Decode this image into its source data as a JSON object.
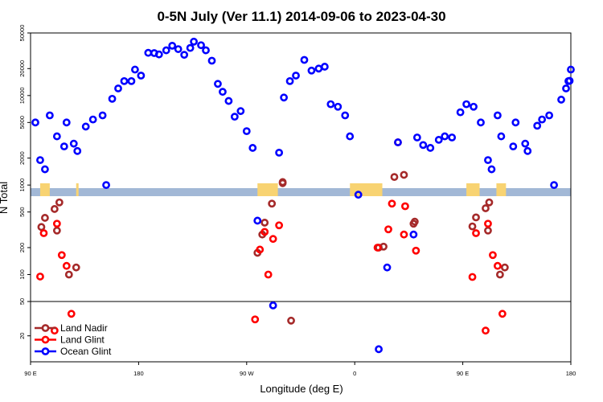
{
  "chart_data": {
    "type": "scatter",
    "title": "0-5N July (Ver 11.1)   2014-09-06 to 2023-04-30",
    "xlabel": "Longitude (deg E)",
    "ylabel": "N Total",
    "x_ticks": [
      {
        "value": 90,
        "label": "90 E"
      },
      {
        "value": 180,
        "label": "180"
      },
      {
        "value": 270,
        "label": "90 W"
      },
      {
        "value": 360,
        "label": "0"
      },
      {
        "value": 450,
        "label": "90 E"
      },
      {
        "value": 540,
        "label": "180"
      }
    ],
    "xlim": [
      90,
      540
    ],
    "upper_panel": {
      "scale": "log",
      "ylim": [
        50,
        50000
      ],
      "y_ticks": [
        {
          "value": 50,
          "label": "50"
        },
        {
          "value": 100,
          "label": "100"
        },
        {
          "value": 200,
          "label": "200"
        },
        {
          "value": 500,
          "label": "500"
        },
        {
          "value": 1000,
          "label": "1000"
        },
        {
          "value": 2000,
          "label": "2000"
        },
        {
          "value": 5000,
          "label": "5000"
        },
        {
          "value": 10000,
          "label": "10000"
        },
        {
          "value": 20000,
          "label": "20000"
        },
        {
          "value": 50000,
          "label": "50000"
        }
      ]
    },
    "lower_panel": {
      "scale": "log",
      "ylim": [
        10,
        50
      ],
      "y_ticks": [
        {
          "value": 20,
          "label": "20"
        }
      ]
    },
    "land_mask_colors": {
      "ocean": "#a2b8d6",
      "land": "#f8d372"
    },
    "land_segments": [
      [
        98,
        106
      ],
      [
        128,
        130
      ],
      [
        279,
        296
      ],
      [
        356,
        383
      ],
      [
        453,
        464
      ],
      [
        478,
        486
      ]
    ],
    "legend": {
      "position": "bottom-left"
    },
    "series": [
      {
        "name": "Land Nadir",
        "color": "#a52a2a",
        "points": [
          [
            99,
            340
          ],
          [
            102,
            430
          ],
          [
            110,
            540
          ],
          [
            112,
            310
          ],
          [
            114,
            640
          ],
          [
            122,
            100
          ],
          [
            128,
            120
          ],
          [
            279,
            175
          ],
          [
            283,
            280
          ],
          [
            285,
            380
          ],
          [
            291,
            620
          ],
          [
            300,
            1080
          ],
          [
            300,
            1050
          ],
          [
            307,
            30
          ],
          [
            380,
            200
          ],
          [
            384,
            205
          ],
          [
            393,
            1230
          ],
          [
            401,
            1300
          ],
          [
            409,
            370
          ],
          [
            410,
            390
          ],
          [
            458,
            345
          ],
          [
            461,
            435
          ],
          [
            469,
            550
          ],
          [
            471,
            310
          ],
          [
            472,
            640
          ],
          [
            481,
            100
          ],
          [
            485,
            120
          ]
        ]
      },
      {
        "name": "Land Glint",
        "color": "#ff0000",
        "points": [
          [
            98,
            95
          ],
          [
            101,
            290
          ],
          [
            110,
            23
          ],
          [
            112,
            370
          ],
          [
            116,
            165
          ],
          [
            120,
            125
          ],
          [
            124,
            36
          ],
          [
            277,
            31
          ],
          [
            281,
            190
          ],
          [
            285,
            300
          ],
          [
            288,
            100
          ],
          [
            292,
            250
          ],
          [
            297,
            355
          ],
          [
            379,
            200
          ],
          [
            388,
            320
          ],
          [
            391,
            620
          ],
          [
            396,
            3000
          ],
          [
            401,
            280
          ],
          [
            402,
            580
          ],
          [
            411,
            185
          ],
          [
            458,
            94
          ],
          [
            461,
            290
          ],
          [
            469,
            23
          ],
          [
            471,
            370
          ],
          [
            475,
            165
          ],
          [
            479,
            125
          ],
          [
            483,
            36
          ]
        ]
      },
      {
        "name": "Ocean Glint",
        "color": "#0000ff",
        "points": [
          [
            94,
            5000
          ],
          [
            98,
            1900
          ],
          [
            102,
            1500
          ],
          [
            106,
            6000
          ],
          [
            112,
            3500
          ],
          [
            118,
            2700
          ],
          [
            120,
            5000
          ],
          [
            126,
            2900
          ],
          [
            129,
            2400
          ],
          [
            136,
            4500
          ],
          [
            142,
            5400
          ],
          [
            150,
            6000
          ],
          [
            153,
            1000
          ],
          [
            158,
            9200
          ],
          [
            163,
            12000
          ],
          [
            168,
            14500
          ],
          [
            174,
            14500
          ],
          [
            177,
            19500
          ],
          [
            182,
            16700
          ],
          [
            188,
            30000
          ],
          [
            193,
            29800
          ],
          [
            197,
            28800
          ],
          [
            203,
            32000
          ],
          [
            208,
            36000
          ],
          [
            213,
            33000
          ],
          [
            218,
            28500
          ],
          [
            223,
            34000
          ],
          [
            226,
            40000
          ],
          [
            232,
            36500
          ],
          [
            236,
            32000
          ],
          [
            241,
            24500
          ],
          [
            246,
            13500
          ],
          [
            250,
            11000
          ],
          [
            255,
            8700
          ],
          [
            260,
            5800
          ],
          [
            265,
            6700
          ],
          [
            270,
            4000
          ],
          [
            275,
            2600
          ],
          [
            279,
            400
          ],
          [
            292,
            45
          ],
          [
            297,
            2300
          ],
          [
            301,
            9500
          ],
          [
            306,
            14500
          ],
          [
            311,
            16700
          ],
          [
            318,
            25000
          ],
          [
            324,
            19000
          ],
          [
            330,
            20000
          ],
          [
            335,
            21000
          ],
          [
            340,
            8000
          ],
          [
            346,
            7500
          ],
          [
            352,
            6000
          ],
          [
            356,
            3500
          ],
          [
            363,
            780
          ],
          [
            380,
            14
          ],
          [
            387,
            120
          ],
          [
            396,
            3000
          ],
          [
            409,
            280
          ],
          [
            412,
            3400
          ],
          [
            417,
            2800
          ],
          [
            423,
            2600
          ],
          [
            430,
            3200
          ],
          [
            435,
            3500
          ],
          [
            441,
            3400
          ],
          [
            448,
            6500
          ],
          [
            453,
            8000
          ],
          [
            459,
            7500
          ],
          [
            465,
            5000
          ],
          [
            471,
            1900
          ],
          [
            474,
            1500
          ],
          [
            479,
            6000
          ],
          [
            482,
            3500
          ],
          [
            492,
            2700
          ],
          [
            494,
            5000
          ],
          [
            502,
            2900
          ],
          [
            504,
            2400
          ],
          [
            512,
            4600
          ],
          [
            516,
            5400
          ],
          [
            522,
            6000
          ],
          [
            526,
            1000
          ],
          [
            532,
            9000
          ],
          [
            536,
            12000
          ],
          [
            538,
            14500
          ],
          [
            539,
            14600
          ],
          [
            540,
            19500
          ]
        ]
      }
    ]
  }
}
